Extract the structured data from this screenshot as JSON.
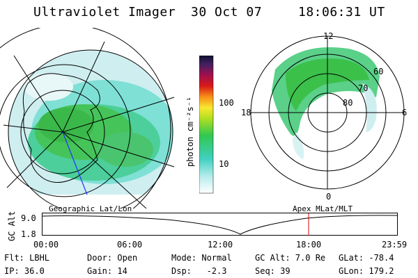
{
  "header": {
    "title": "Ultraviolet Imager",
    "date": "30 Oct 07",
    "time": "18:06:31 UT"
  },
  "colorbar": {
    "unit_label": "photon cm⁻²s⁻¹",
    "ticks": [
      "100",
      "10"
    ]
  },
  "polar_plot": {
    "mlt_labels": [
      "12",
      "18",
      "6",
      "0"
    ],
    "lat_labels": [
      "60",
      "70",
      "80"
    ]
  },
  "captions": {
    "left": "Geographic Lat/Lon",
    "right": "Apex MLat/MLT"
  },
  "timeline": {
    "ylabel": "GC Alt",
    "ymax": "9.0",
    "ymin": "1.8",
    "xticks": [
      "00:00",
      "06:00",
      "12:00",
      "18:00",
      "23:59"
    ],
    "current_marker_color": "#e00000"
  },
  "footer": {
    "row1": [
      "Flt: LBHL",
      "Door: Open",
      "Mode: Normal",
      "GC Alt: 7.0 Re",
      "GLat: -78.4"
    ],
    "row2": [
      "IP: 36.0",
      "Gain: 14",
      "Dsp:   -2.3",
      "Seq: 39",
      "GLon: 179.2"
    ]
  }
}
